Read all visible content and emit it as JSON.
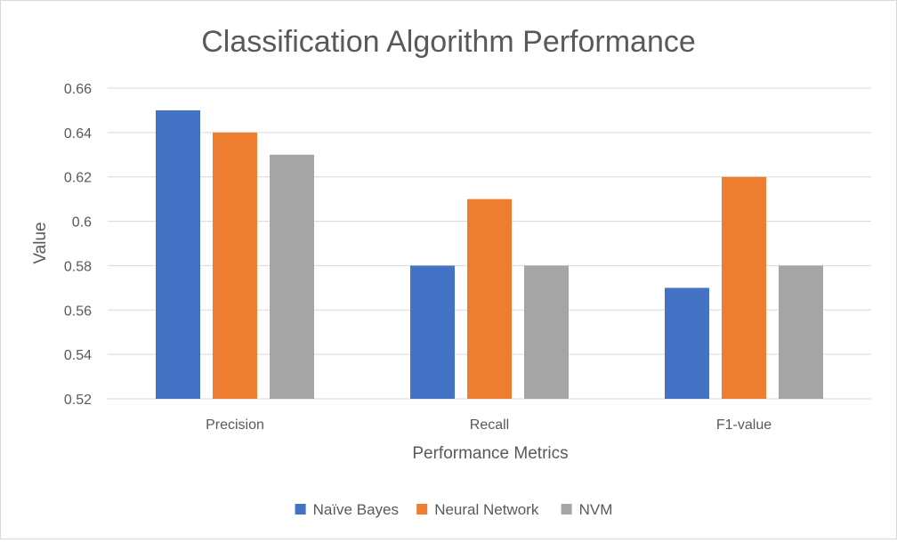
{
  "chart_data": {
    "type": "bar",
    "title": "Classification Algorithm Performance",
    "xlabel": "Performance Metrics",
    "ylabel": "Value",
    "categories": [
      "Precision",
      "Recall",
      "F1-value"
    ],
    "series": [
      {
        "name": "Naïve Bayes",
        "color": "#4472c4",
        "values": [
          0.65,
          0.58,
          0.57
        ]
      },
      {
        "name": "Neural Network",
        "color": "#ed7d31",
        "values": [
          0.64,
          0.61,
          0.62
        ]
      },
      {
        "name": "NVM",
        "color": "#a5a5a5",
        "values": [
          0.63,
          0.58,
          0.58
        ]
      }
    ],
    "ylim": [
      0.52,
      0.66
    ],
    "yticks": [
      0.52,
      0.54,
      0.56,
      0.58,
      0.6,
      0.62,
      0.64,
      0.66
    ],
    "ytick_labels": [
      "0.52",
      "0.54",
      "0.56",
      "0.58",
      "0.6",
      "0.62",
      "0.64",
      "0.66"
    ],
    "grid": true,
    "legend_position": "bottom"
  }
}
